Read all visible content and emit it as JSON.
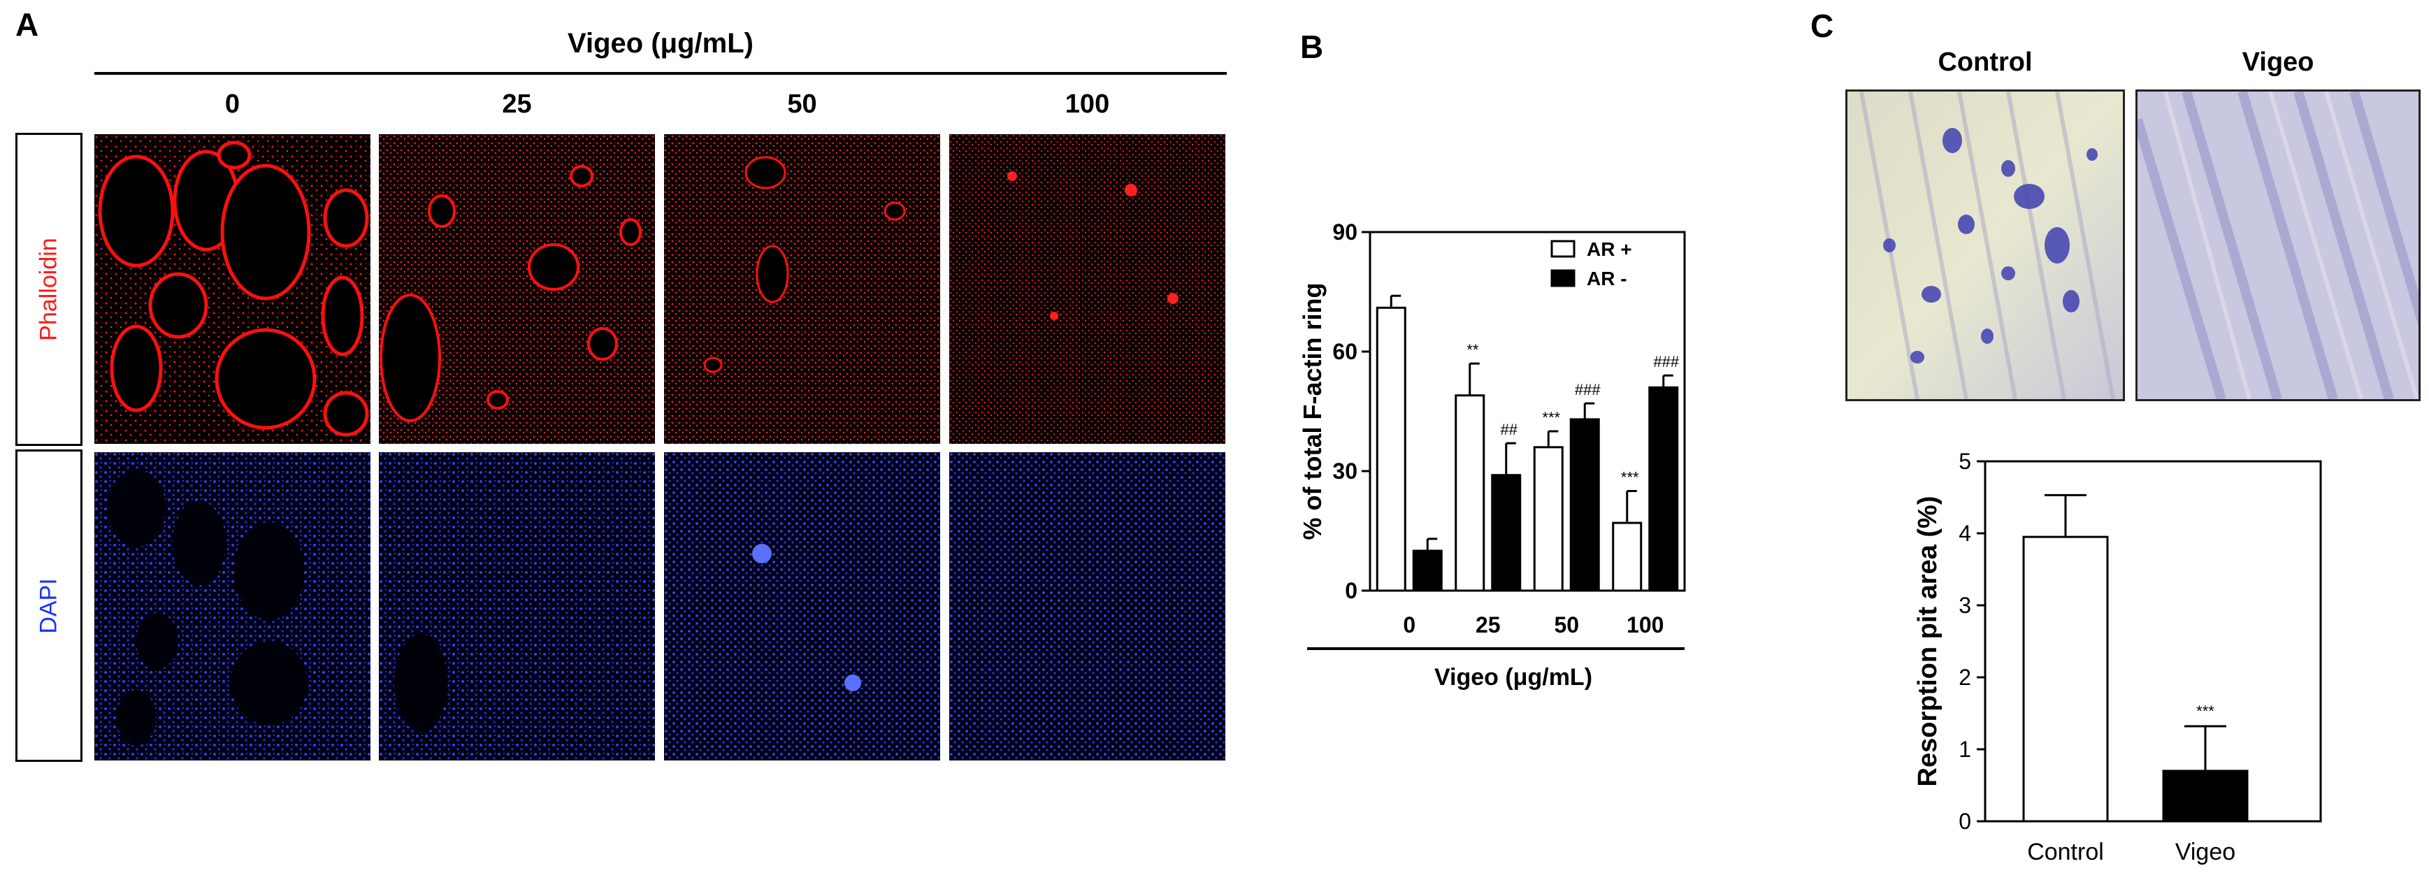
{
  "panelA": {
    "letter": "A",
    "header": "Vigeo (μg/mL)",
    "doses": [
      "0",
      "25",
      "50",
      "100"
    ],
    "rows": [
      {
        "label": "Phalloidin",
        "color": "#ff1a1a"
      },
      {
        "label": "DAPI",
        "color": "#1a33ff"
      }
    ]
  },
  "panelB": {
    "letter": "B"
  },
  "panelC": {
    "letter": "C",
    "image_labels": [
      "Control",
      "Vigeo"
    ]
  },
  "chart_data": [
    {
      "type": "bar",
      "xlabel": "Vigeo (μg/mL)",
      "ylabel": "% of total F-actin ring",
      "categories": [
        "0",
        "25",
        "50",
        "100"
      ],
      "ylim": [
        0,
        90
      ],
      "yticks": [
        "0",
        "30",
        "60",
        "90"
      ],
      "legend_position": "top-right",
      "series": [
        {
          "name": "AR +",
          "fill": "#ffffff",
          "values": [
            71,
            49,
            36,
            17
          ],
          "errors": [
            3,
            8,
            4,
            8
          ],
          "annotations": [
            "",
            "**",
            "***",
            "***"
          ]
        },
        {
          "name": "AR -",
          "fill": "#000000",
          "values": [
            10,
            29,
            43,
            51
          ],
          "errors": [
            3,
            8,
            4,
            3
          ],
          "annotations": [
            "",
            "##",
            "###",
            "###"
          ]
        }
      ]
    },
    {
      "type": "bar",
      "ylabel": "Resorption pit area (%)",
      "categories": [
        "Control",
        "Vigeo"
      ],
      "ylim": [
        0,
        5
      ],
      "yticks": [
        "0",
        "1",
        "2",
        "3",
        "4",
        "5"
      ],
      "values": [
        3.95,
        0.7
      ],
      "errors": [
        0.58,
        0.62
      ],
      "fills": [
        "#ffffff",
        "#000000"
      ],
      "annotations": [
        "",
        "***"
      ]
    }
  ]
}
